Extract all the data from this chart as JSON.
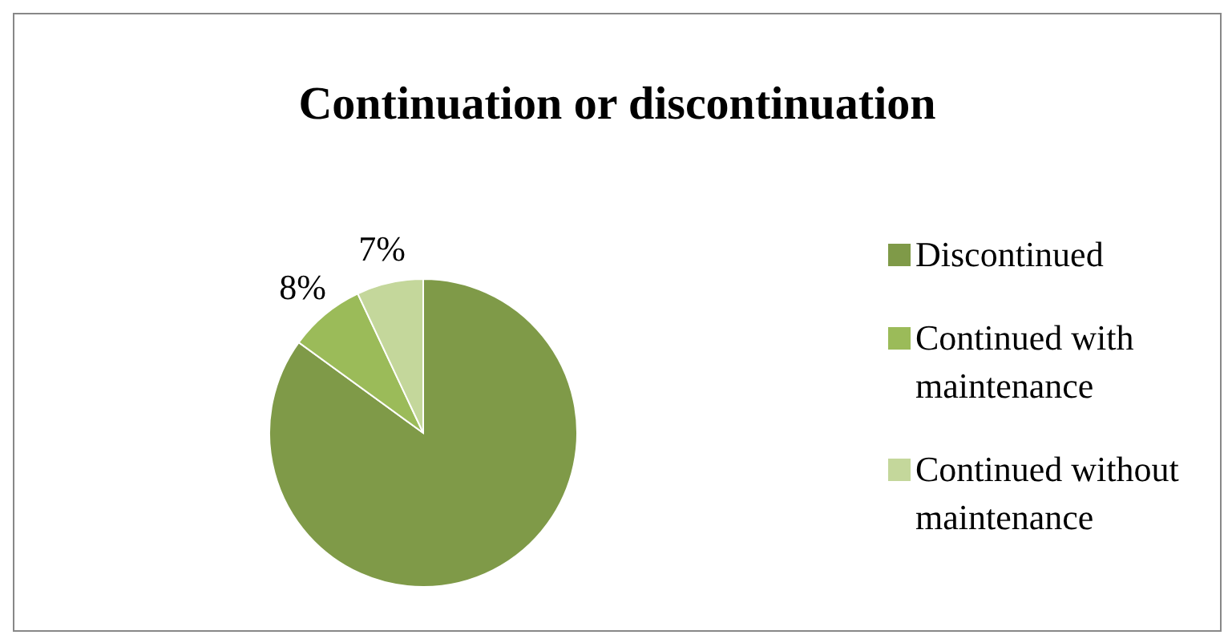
{
  "chart_data": {
    "type": "pie",
    "title": "Continuation or discontinuation",
    "categories": [
      "Discontinued",
      "Continued with maintenance",
      "Continued without maintenance"
    ],
    "values": [
      85,
      8,
      7
    ],
    "colors": [
      "#7f9a48",
      "#9bbb59",
      "#c4d79b"
    ],
    "value_labels": [
      null,
      "8%",
      "7%"
    ],
    "legend": "right"
  }
}
